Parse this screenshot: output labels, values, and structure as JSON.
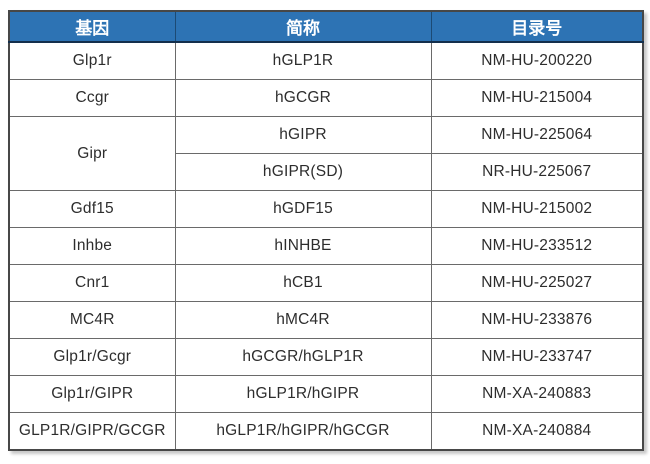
{
  "colors": {
    "header_bg": "#2d73b4",
    "header_text": "#ffffff",
    "header_divider": "#1c4a74",
    "header_bottom_border": "#132f4c",
    "body_border": "#6a6a6a",
    "outer_border": "#474747",
    "body_text": "#2d2d2d"
  },
  "table": {
    "headers": [
      {
        "label": "基因"
      },
      {
        "label": "简称"
      },
      {
        "label": "目录号"
      }
    ],
    "rows": [
      {
        "cells": [
          {
            "text": "Glp1r"
          },
          {
            "text": "hGLP1R"
          },
          {
            "text": "NM-HU-200220"
          }
        ]
      },
      {
        "cells": [
          {
            "text": "Ccgr"
          },
          {
            "text": "hGCGR"
          },
          {
            "text": "NM-HU-215004"
          }
        ]
      },
      {
        "cells": [
          {
            "text": "Gipr",
            "rowspan": 2
          },
          {
            "text": "hGIPR"
          },
          {
            "text": "NM-HU-225064"
          }
        ]
      },
      {
        "cells": [
          {
            "text": "hGIPR(SD)"
          },
          {
            "text": "NR-HU-225067"
          }
        ]
      },
      {
        "cells": [
          {
            "text": "Gdf15"
          },
          {
            "text": "hGDF15"
          },
          {
            "text": "NM-HU-215002"
          }
        ]
      },
      {
        "cells": [
          {
            "text": "Inhbe"
          },
          {
            "text": "hINHBE"
          },
          {
            "text": "NM-HU-233512"
          }
        ]
      },
      {
        "cells": [
          {
            "text": "Cnr1"
          },
          {
            "text": "hCB1"
          },
          {
            "text": "NM-HU-225027"
          }
        ]
      },
      {
        "cells": [
          {
            "text": "MC4R"
          },
          {
            "text": "hMC4R"
          },
          {
            "text": "NM-HU-233876"
          }
        ]
      },
      {
        "cells": [
          {
            "text": "Glp1r/Gcgr"
          },
          {
            "text": "hGCGR/hGLP1R"
          },
          {
            "text": "NM-HU-233747"
          }
        ]
      },
      {
        "cells": [
          {
            "text": "Glp1r/GIPR"
          },
          {
            "text": "hGLP1R/hGIPR"
          },
          {
            "text": "NM-XA-240883"
          }
        ]
      },
      {
        "cells": [
          {
            "text": "GLP1R/GIPR/GCGR"
          },
          {
            "text": "hGLP1R/hGIPR/hGCGR"
          },
          {
            "text": "NM-XA-240884"
          }
        ]
      }
    ]
  }
}
